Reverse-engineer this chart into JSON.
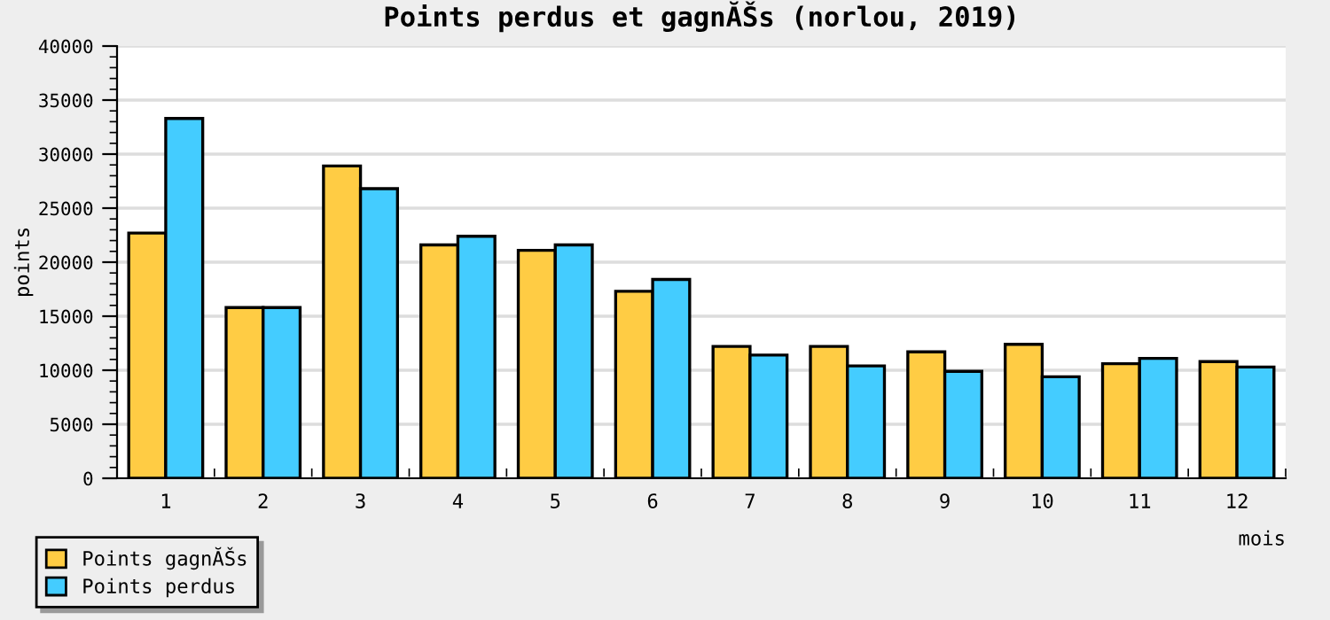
{
  "chart_data": {
    "type": "bar",
    "title": "Points perdus et gagnĂŠs (norlou, 2019)",
    "xlabel": "mois",
    "ylabel": "points",
    "categories": [
      "1",
      "2",
      "3",
      "4",
      "5",
      "6",
      "7",
      "8",
      "9",
      "10",
      "11",
      "12"
    ],
    "series": [
      {
        "name": "Points gagnĂŠs",
        "color": "#ffcc44",
        "values": [
          22700,
          15800,
          28900,
          21600,
          21100,
          17300,
          12200,
          12200,
          11700,
          12400,
          10600,
          10800
        ]
      },
      {
        "name": "Points perdus",
        "color": "#44ccff",
        "values": [
          33300,
          15800,
          26800,
          22400,
          21600,
          18400,
          11400,
          10400,
          9900,
          9400,
          11100,
          10300
        ]
      }
    ],
    "ylim": [
      0,
      40000
    ],
    "yticks": [
      0,
      5000,
      10000,
      15000,
      20000,
      25000,
      30000,
      35000,
      40000
    ],
    "grid": "y",
    "legend": "bottom left"
  }
}
